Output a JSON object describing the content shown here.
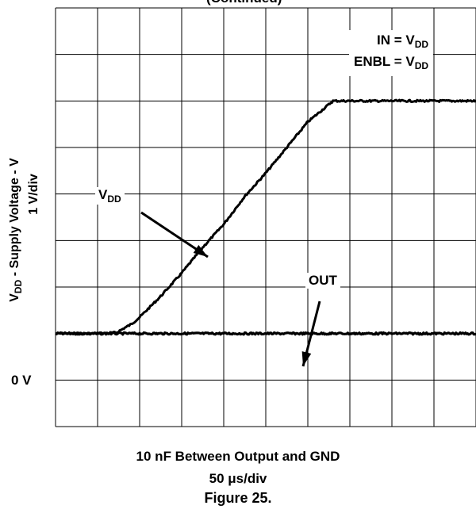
{
  "chart_data": {
    "type": "line",
    "title_fragment": "(Continued)",
    "conditions": {
      "in_main": "IN = V",
      "in_sub": "DD",
      "enbl_main": "ENBL = V",
      "enbl_sub": "DD"
    },
    "ylabel": {
      "main": "V",
      "sub": "DD",
      "rest": " - Supply Voltage - V",
      "scale": "1 V/div"
    },
    "xlabel": {
      "line1": "10 nF Between Output and GND",
      "scale": "50 μs/div"
    },
    "figure_label": "Figure 25.",
    "zero_label": "0 V",
    "x_divisions": 10,
    "y_divisions": 9,
    "zero_division": 2,
    "annotations": [
      {
        "id": "vdd",
        "main": "V",
        "sub": "DD"
      },
      {
        "id": "out",
        "main": "OUT",
        "sub": ""
      }
    ],
    "series": [
      {
        "name": "VDD",
        "unit_x": "div",
        "unit_y": "div",
        "x": [
          0,
          1,
          1.45,
          1.6,
          1.8,
          2.0,
          2.5,
          3.0,
          3.5,
          4.0,
          4.5,
          5.0,
          5.5,
          6.0,
          6.6,
          7.0,
          8.0,
          9.0,
          10.0
        ],
        "y": [
          2.0,
          2.0,
          2.02,
          2.1,
          2.2,
          2.35,
          2.8,
          3.3,
          3.85,
          4.35,
          4.95,
          5.45,
          6.0,
          6.55,
          7.0,
          7.0,
          7.0,
          7.0,
          7.0
        ]
      },
      {
        "name": "OUT",
        "unit_x": "div",
        "unit_y": "div",
        "x": [
          0,
          10
        ],
        "y": [
          2.0,
          2.0
        ]
      }
    ]
  }
}
